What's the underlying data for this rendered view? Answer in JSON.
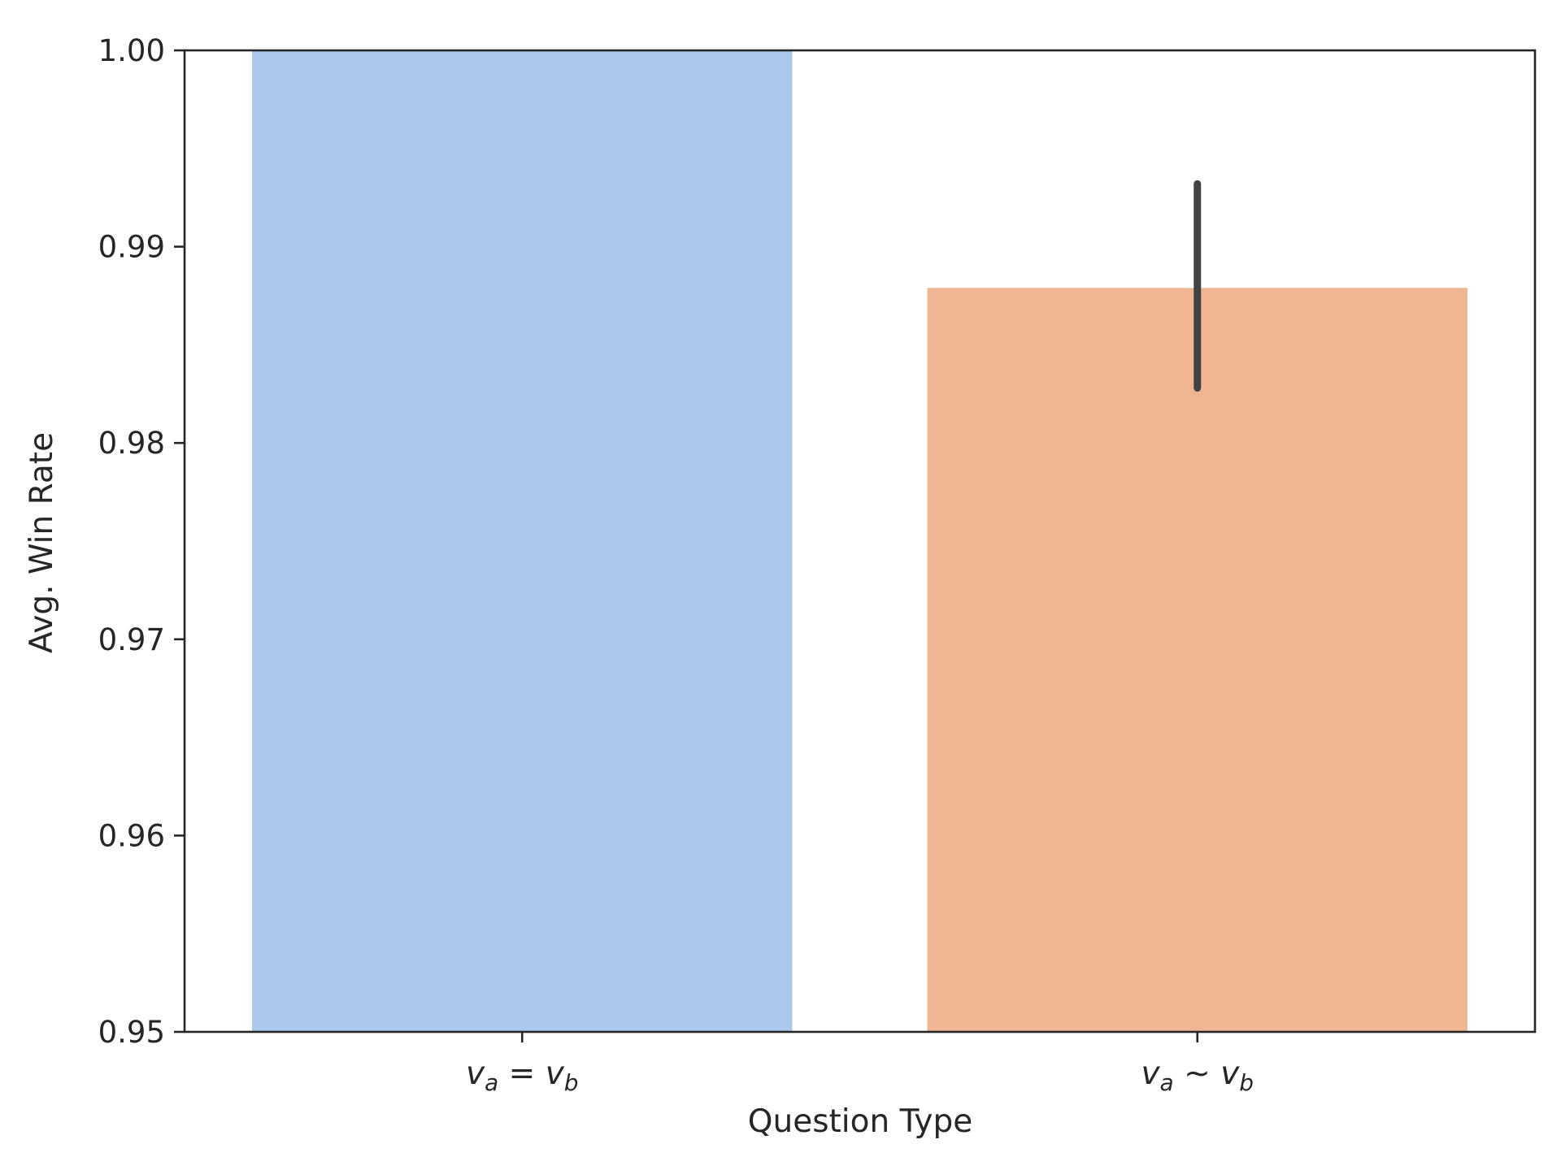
{
  "chart_data": {
    "type": "bar",
    "categories": [
      {
        "base_a": "v",
        "sub_a": "a",
        "op": "=",
        "base_b": "v",
        "sub_b": "b"
      },
      {
        "base_a": "v",
        "sub_a": "a",
        "op": "~",
        "base_b": "v",
        "sub_b": "b"
      }
    ],
    "values": [
      1.0,
      0.9879
    ],
    "error_bars": [
      null,
      {
        "low": 0.9828,
        "high": 0.9932
      }
    ],
    "colors": [
      "#abc9ec",
      "#f0b693"
    ],
    "error_bar_color": "#424242",
    "xlabel": "Question Type",
    "ylabel": "Avg. Win Rate",
    "ylim": [
      0.95,
      1.0
    ],
    "yticks": [
      "0.95",
      "0.96",
      "0.97",
      "0.98",
      "0.99",
      "1.00"
    ],
    "grid": false,
    "legend": "none"
  }
}
